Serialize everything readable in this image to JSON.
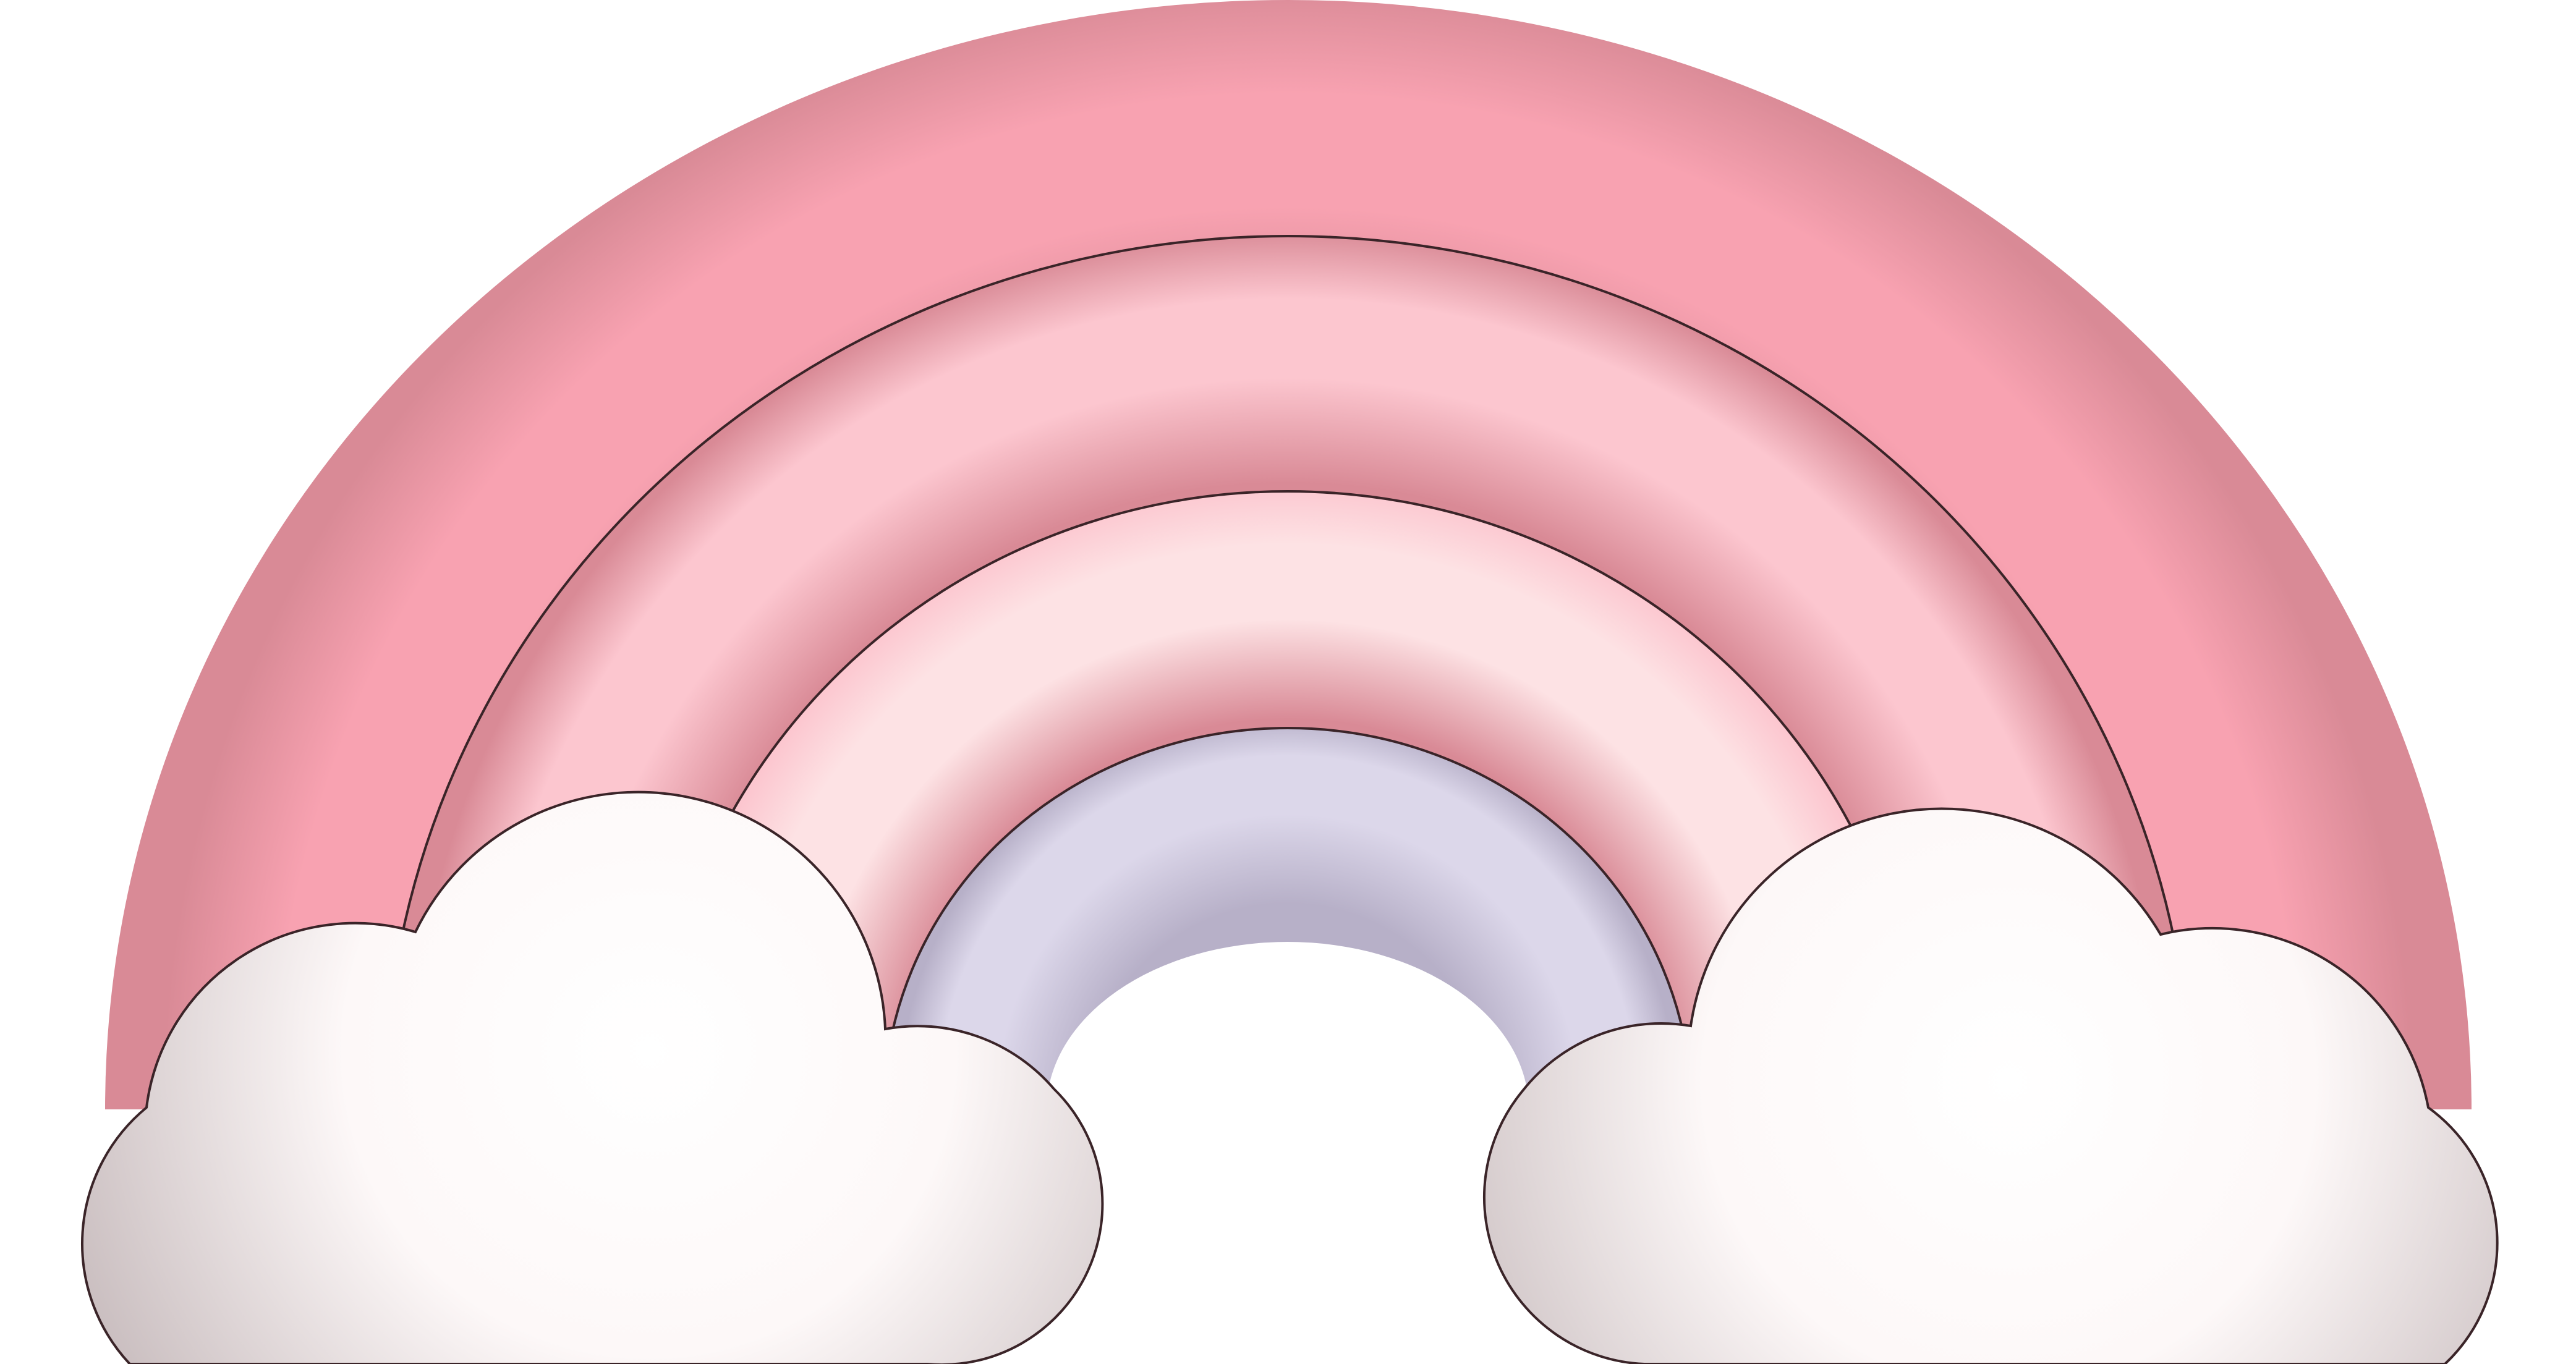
{
  "scene": {
    "subject": "rainbow-with-clouds-icon",
    "background_color": "#ffffff",
    "colors": {
      "band_outer": "#f8a2b1",
      "band_outer_shadow": "#d98a96",
      "band_second": "#fcc6cf",
      "band_third": "#fde2e4",
      "band_inner": "#dcd7ea",
      "band_inner_shadow": "#b7b0c8",
      "cloud": "#fdf8f8",
      "cloud_shadow": "#bfb2b4",
      "outline": "#3a2428"
    }
  }
}
